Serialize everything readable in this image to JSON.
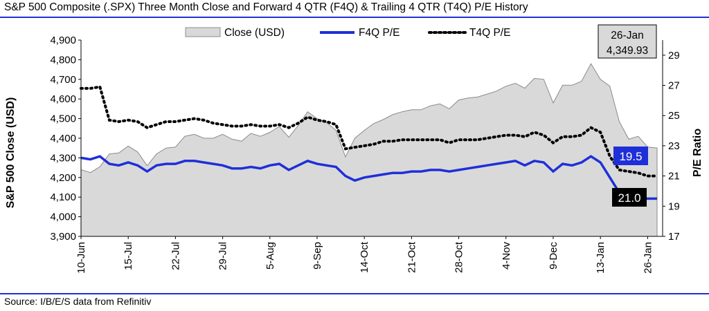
{
  "title": "S&P 500 Composite (.SPX) Three Month Close and Forward 4 QTR (F4Q) & Trailing 4 QTR (T4Q) P/E History",
  "source": "Source: I/B/E/S data from Refinitiv",
  "colors": {
    "rule": "#1f2fd8",
    "area_fill": "#d9d9d9",
    "area_stroke": "#8a8a8a",
    "f4q_line": "#1f2fd8",
    "t4q_line": "#000000",
    "callout_f4q_bg": "#1f2fd8",
    "callout_t4q_bg": "#000000",
    "date_box_bg": "#d9d9d9"
  },
  "chart_data": {
    "type": "area+line",
    "title": "S&P 500 Composite (.SPX) Three Month Close and Forward 4 QTR (F4Q) & Trailing 4 QTR (T4Q) P/E History",
    "ylabel_left": "S&P 500 Close (USD)",
    "ylabel_right": "P/E Ratio",
    "ylim_left": [
      3900,
      4900
    ],
    "yticks_left": [
      "3,900",
      "4,000",
      "4,100",
      "4,200",
      "4,300",
      "4,400",
      "4,500",
      "4,600",
      "4,700",
      "4,800",
      "4,900"
    ],
    "ylim_right": [
      17,
      30
    ],
    "yticks_right": [
      "17",
      "19",
      "21",
      "23",
      "25",
      "27",
      "29"
    ],
    "xticks": [
      "10-Jun",
      "15-Jul",
      "22-Jul",
      "29-Jul",
      "5-Aug",
      "9-Sep",
      "14-Oct",
      "21-Oct",
      "28-Oct",
      "4-Nov",
      "9-Dec",
      "13-Jan",
      "26-Jan"
    ],
    "xtick_positions": [
      0,
      5,
      10,
      15,
      20,
      25,
      30,
      35,
      40,
      45,
      50,
      55,
      60
    ],
    "legend": [
      "Close (USD)",
      "F4Q P/E",
      "T4Q P/E"
    ],
    "legend_position": "top-center",
    "series": [
      {
        "name": "Close (USD)",
        "kind": "area",
        "values": [
          4240,
          4225,
          4255,
          4320,
          4325,
          4360,
          4330,
          4260,
          4320,
          4350,
          4355,
          4410,
          4420,
          4400,
          4400,
          4420,
          4395,
          4385,
          4425,
          4410,
          4430,
          4460,
          4405,
          4465,
          4535,
          4500,
          4480,
          4440,
          4305,
          4400,
          4440,
          4475,
          4495,
          4520,
          4535,
          4545,
          4545,
          4565,
          4575,
          4550,
          4595,
          4605,
          4610,
          4625,
          4640,
          4665,
          4680,
          4655,
          4705,
          4700,
          4580,
          4670,
          4670,
          4690,
          4780,
          4700,
          4665,
          4485,
          4395,
          4410,
          4355,
          4350
        ]
      },
      {
        "name": "F4Q P/E",
        "kind": "line",
        "values": [
          22.2,
          22.1,
          22.3,
          21.8,
          21.7,
          21.9,
          21.7,
          21.3,
          21.7,
          21.8,
          21.8,
          22.0,
          22.0,
          21.9,
          21.8,
          21.7,
          21.5,
          21.5,
          21.6,
          21.5,
          21.7,
          21.8,
          21.4,
          21.7,
          22.0,
          21.8,
          21.7,
          21.6,
          21.0,
          20.7,
          20.9,
          21.0,
          21.1,
          21.2,
          21.2,
          21.3,
          21.3,
          21.4,
          21.4,
          21.3,
          21.4,
          21.5,
          21.6,
          21.7,
          21.8,
          21.9,
          22.0,
          21.7,
          22.0,
          21.9,
          21.3,
          21.8,
          21.7,
          21.9,
          22.3,
          21.9,
          20.9,
          19.9,
          19.5,
          19.5,
          19.5,
          19.5
        ]
      },
      {
        "name": "T4Q P/E",
        "kind": "dotted-line",
        "values": [
          26.8,
          26.8,
          26.9,
          24.7,
          24.6,
          24.7,
          24.6,
          24.2,
          24.4,
          24.6,
          24.6,
          24.7,
          24.8,
          24.7,
          24.5,
          24.4,
          24.3,
          24.3,
          24.4,
          24.3,
          24.3,
          24.4,
          24.2,
          24.5,
          24.9,
          24.7,
          24.6,
          24.4,
          22.8,
          22.9,
          23.0,
          23.1,
          23.3,
          23.3,
          23.4,
          23.4,
          23.4,
          23.4,
          23.4,
          23.2,
          23.4,
          23.4,
          23.4,
          23.5,
          23.6,
          23.7,
          23.7,
          23.6,
          23.9,
          23.7,
          23.2,
          23.6,
          23.6,
          23.7,
          24.2,
          23.9,
          22.3,
          21.4,
          21.3,
          21.2,
          21.0,
          21.0
        ]
      }
    ],
    "annotations": {
      "date_box": {
        "date": "26-Jan",
        "value": "4,349.93"
      },
      "f4q_last": "19.5",
      "t4q_last": "21.0"
    }
  }
}
